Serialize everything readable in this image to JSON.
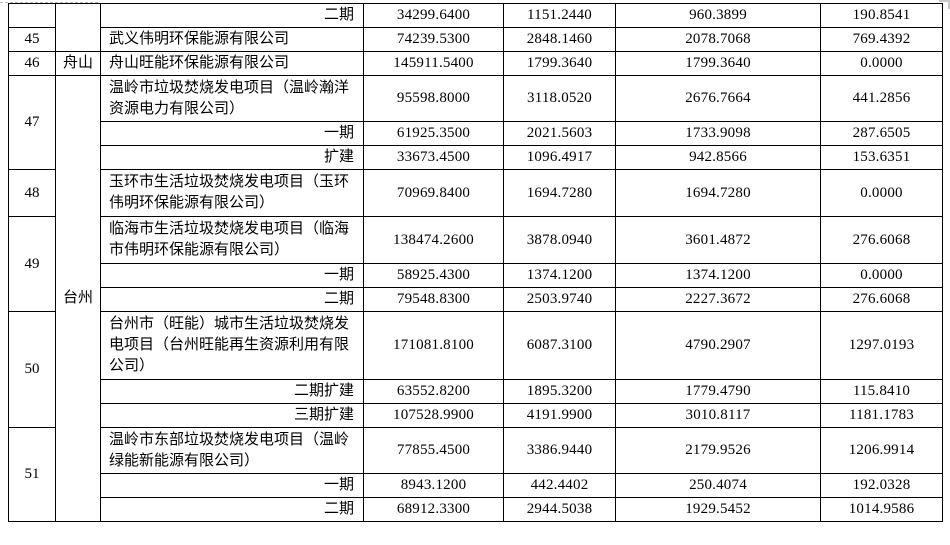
{
  "table": {
    "cities": {
      "zhoushan": "舟山",
      "taizhou": "台州"
    },
    "rows": [
      {
        "no": "",
        "city": "",
        "project": "二期",
        "values": [
          "34299.6400",
          "1151.2440",
          "960.3899",
          "190.8541"
        ]
      },
      {
        "no": "45",
        "project": "武义伟明环保能源有限公司",
        "values": [
          "74239.5300",
          "2848.1460",
          "2078.7068",
          "769.4392"
        ]
      },
      {
        "no": "46",
        "city": "舟山",
        "project": "舟山旺能环保能源有限公司",
        "values": [
          "145911.5400",
          "1799.3640",
          "1799.3640",
          "0.0000"
        ]
      },
      {
        "no": "47",
        "city": "台州",
        "project": "温岭市垃圾焚烧发电项目（温岭瀚洋资源电力有限公司）",
        "values": [
          "95598.8000",
          "3118.0520",
          "2676.7664",
          "441.2856"
        ]
      },
      {
        "project": "一期",
        "values": [
          "61925.3500",
          "2021.5603",
          "1733.9098",
          "287.6505"
        ]
      },
      {
        "project": "扩建",
        "values": [
          "33673.4500",
          "1096.4917",
          "942.8566",
          "153.6351"
        ]
      },
      {
        "no": "48",
        "project": "玉环市生活垃圾焚烧发电项目（玉环伟明环保能源有限公司）",
        "values": [
          "70969.8400",
          "1694.7280",
          "1694.7280",
          "0.0000"
        ]
      },
      {
        "no": "49",
        "project": "临海市生活垃圾焚烧发电项目（临海市伟明环保能源有限公司）",
        "values": [
          "138474.2600",
          "3878.0940",
          "3601.4872",
          "276.6068"
        ]
      },
      {
        "project": "一期",
        "values": [
          "58925.4300",
          "1374.1200",
          "1374.1200",
          "0.0000"
        ]
      },
      {
        "project": "二期",
        "values": [
          "79548.8300",
          "2503.9740",
          "2227.3672",
          "276.6068"
        ]
      },
      {
        "no": "50",
        "project": "台州市（旺能）城市生活垃圾焚烧发电项目（台州旺能再生资源利用有限公司）",
        "values": [
          "171081.8100",
          "6087.3100",
          "4790.2907",
          "1297.0193"
        ]
      },
      {
        "project": "二期扩建",
        "values": [
          "63552.8200",
          "1895.3200",
          "1779.4790",
          "115.8410"
        ]
      },
      {
        "project": "三期扩建",
        "values": [
          "107528.9900",
          "4191.9900",
          "3010.8117",
          "1181.1783"
        ]
      },
      {
        "no": "51",
        "project": "温岭市东部垃圾焚烧发电项目（温岭绿能新能源有限公司）",
        "values": [
          "77855.4500",
          "3386.9440",
          "2179.9526",
          "1206.9914"
        ]
      },
      {
        "project": "一期",
        "values": [
          "8943.1200",
          "442.4402",
          "250.4074",
          "192.0328"
        ]
      },
      {
        "project": "二期",
        "values": [
          "68912.3300",
          "2944.5038",
          "1929.5452",
          "1014.9586"
        ]
      }
    ]
  }
}
